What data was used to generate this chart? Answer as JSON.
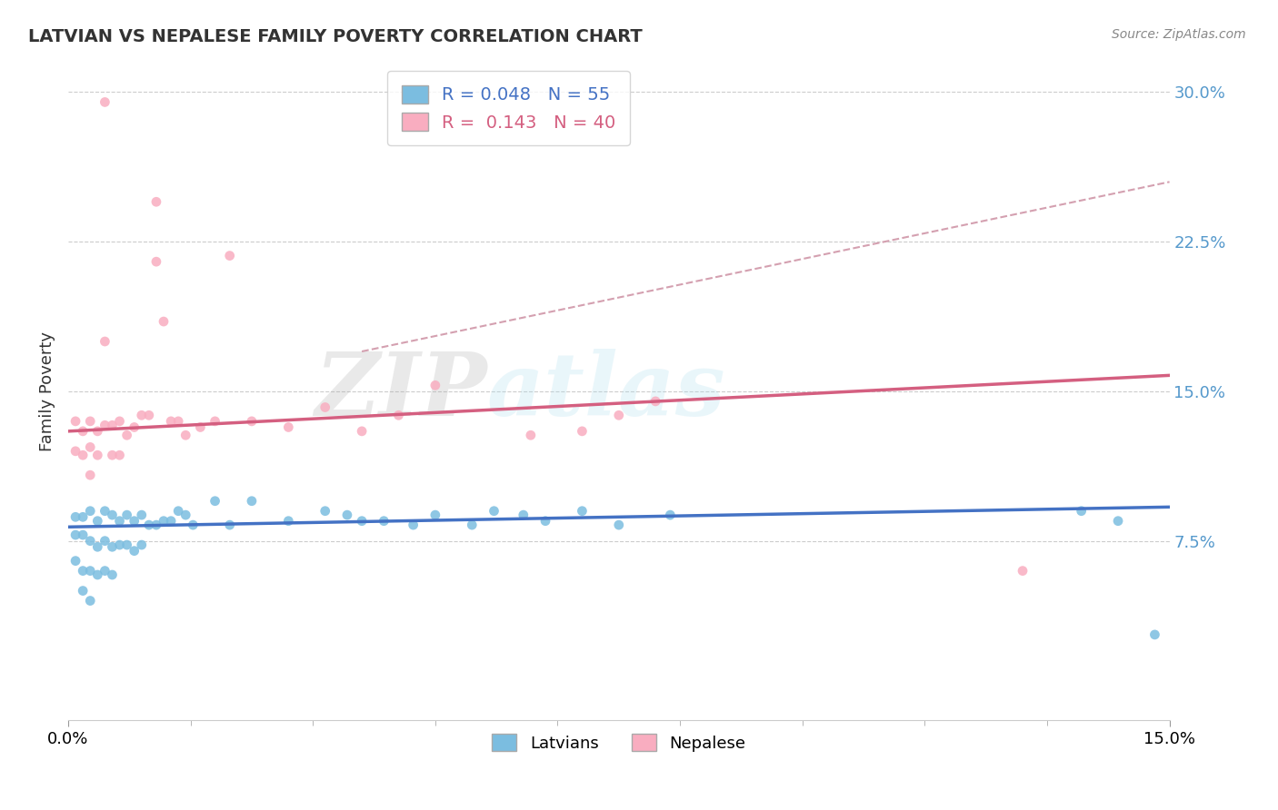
{
  "title": "LATVIAN VS NEPALESE FAMILY POVERTY CORRELATION CHART",
  "source": "Source: ZipAtlas.com",
  "ylabel": "Family Poverty",
  "xlim": [
    0.0,
    0.15
  ],
  "ylim": [
    -0.015,
    0.315
  ],
  "yticks": [
    0.075,
    0.15,
    0.225,
    0.3
  ],
  "ytick_labels": [
    "7.5%",
    "15.0%",
    "22.5%",
    "30.0%"
  ],
  "xticks": [
    0.0,
    0.15
  ],
  "xtick_labels": [
    "0.0%",
    "15.0%"
  ],
  "legend_entry1": "R = 0.048   N = 55",
  "legend_entry2": "R =  0.143   N = 40",
  "latvian_color": "#7bbde0",
  "nepalese_color": "#f9adc0",
  "latvian_line_color": "#4472c4",
  "nepalese_line_color": "#d45f80",
  "trend_line_dashed_color": "#d4a0b0",
  "background_color": "#ffffff",
  "grid_color": "#cccccc",
  "watermark_zip": "ZIP",
  "watermark_atlas": "atlas",
  "latvians_label": "Latvians",
  "nepalese_label": "Nepalese",
  "latvian_scatter_x": [
    0.001,
    0.001,
    0.001,
    0.002,
    0.002,
    0.002,
    0.002,
    0.003,
    0.003,
    0.003,
    0.003,
    0.004,
    0.004,
    0.004,
    0.005,
    0.005,
    0.005,
    0.006,
    0.006,
    0.006,
    0.007,
    0.007,
    0.008,
    0.008,
    0.009,
    0.009,
    0.01,
    0.01,
    0.011,
    0.012,
    0.013,
    0.014,
    0.015,
    0.016,
    0.017,
    0.02,
    0.022,
    0.025,
    0.03,
    0.035,
    0.038,
    0.04,
    0.043,
    0.047,
    0.05,
    0.055,
    0.058,
    0.062,
    0.065,
    0.07,
    0.075,
    0.082,
    0.138,
    0.143,
    0.148
  ],
  "latvian_scatter_y": [
    0.087,
    0.078,
    0.065,
    0.087,
    0.078,
    0.06,
    0.05,
    0.09,
    0.075,
    0.06,
    0.045,
    0.085,
    0.072,
    0.058,
    0.09,
    0.075,
    0.06,
    0.088,
    0.072,
    0.058,
    0.085,
    0.073,
    0.088,
    0.073,
    0.085,
    0.07,
    0.088,
    0.073,
    0.083,
    0.083,
    0.085,
    0.085,
    0.09,
    0.088,
    0.083,
    0.095,
    0.083,
    0.095,
    0.085,
    0.09,
    0.088,
    0.085,
    0.085,
    0.083,
    0.088,
    0.083,
    0.09,
    0.088,
    0.085,
    0.09,
    0.083,
    0.088,
    0.09,
    0.085,
    0.028
  ],
  "nepalese_scatter_x": [
    0.001,
    0.001,
    0.002,
    0.002,
    0.003,
    0.003,
    0.003,
    0.004,
    0.004,
    0.005,
    0.005,
    0.005,
    0.006,
    0.006,
    0.007,
    0.007,
    0.008,
    0.009,
    0.01,
    0.011,
    0.012,
    0.012,
    0.013,
    0.014,
    0.015,
    0.016,
    0.018,
    0.02,
    0.022,
    0.025,
    0.03,
    0.035,
    0.04,
    0.045,
    0.05,
    0.063,
    0.07,
    0.075,
    0.08,
    0.13
  ],
  "nepalese_scatter_y": [
    0.135,
    0.12,
    0.13,
    0.118,
    0.135,
    0.122,
    0.108,
    0.13,
    0.118,
    0.295,
    0.175,
    0.133,
    0.133,
    0.118,
    0.135,
    0.118,
    0.128,
    0.132,
    0.138,
    0.138,
    0.215,
    0.245,
    0.185,
    0.135,
    0.135,
    0.128,
    0.132,
    0.135,
    0.218,
    0.135,
    0.132,
    0.142,
    0.13,
    0.138,
    0.153,
    0.128,
    0.13,
    0.138,
    0.145,
    0.06
  ],
  "latvian_trend_x0": 0.0,
  "latvian_trend_y0": 0.082,
  "latvian_trend_x1": 0.15,
  "latvian_trend_y1": 0.092,
  "nepalese_trend_x0": 0.0,
  "nepalese_trend_y0": 0.13,
  "nepalese_trend_x1": 0.15,
  "nepalese_trend_y1": 0.158,
  "dashed_trend_x0": 0.04,
  "dashed_trend_y0": 0.17,
  "dashed_trend_x1": 0.15,
  "dashed_trend_y1": 0.255
}
